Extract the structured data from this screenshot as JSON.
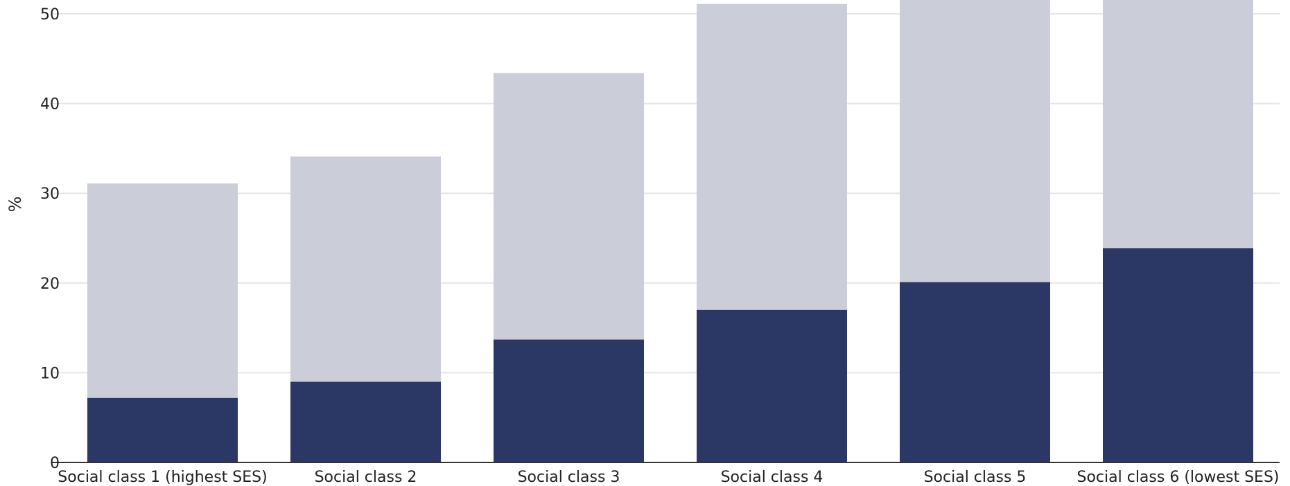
{
  "chart_data": {
    "type": "bar",
    "stacked": true,
    "categories": [
      "Social class 1 (highest SES)",
      "Social class 2",
      "Social class 3",
      "Social class 4",
      "Social class 5",
      "Social class 6 (lowest SES)"
    ],
    "series": [
      {
        "values": [
          7.2,
          9.0,
          13.7,
          17.0,
          20.1,
          23.9
        ],
        "color": "#2b3764"
      },
      {
        "values": [
          23.9,
          25.1,
          29.7,
          34.1,
          33.9,
          30.1
        ],
        "color": "#cbcdd9"
      }
    ],
    "ylabel": "%",
    "ylim": [
      0,
      50
    ],
    "yticks": [
      0,
      10,
      20,
      30,
      40,
      50
    ],
    "grid": true,
    "legend": "none"
  }
}
